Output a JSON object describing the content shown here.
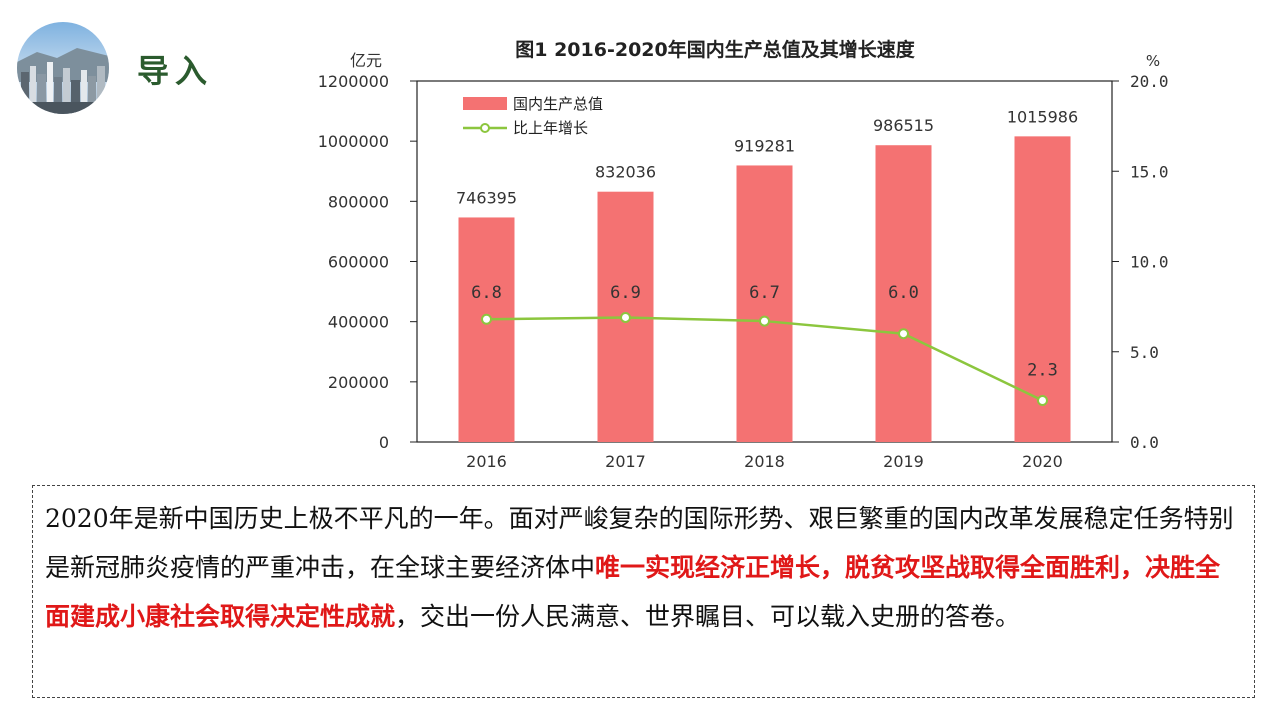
{
  "header": {
    "title": "导入"
  },
  "chart_data": {
    "type": "bar+line",
    "title": "图1    2016-2020年国内生产总值及其增长速度",
    "y_left_unit": "亿元",
    "y_right_unit": "%",
    "categories": [
      "2016",
      "2017",
      "2018",
      "2019",
      "2020"
    ],
    "series": [
      {
        "name": "国内生产总值",
        "kind": "bar",
        "axis": "left",
        "color": "#f47272",
        "values": [
          746395,
          832036,
          919281,
          986515,
          1015986
        ],
        "labels": [
          "746395",
          "832036",
          "919281",
          "986515",
          "1015986"
        ]
      },
      {
        "name": "比上年增长",
        "kind": "line",
        "axis": "right",
        "color": "#8cc63e",
        "values": [
          6.8,
          6.9,
          6.7,
          6.0,
          2.3
        ],
        "labels": [
          "6.8",
          "6.9",
          "6.7",
          "6.0",
          "2.3"
        ]
      }
    ],
    "y_left_ticks": [
      "0",
      "200000",
      "400000",
      "600000",
      "800000",
      "1000000",
      "1200000"
    ],
    "y_left_range": [
      0,
      1200000
    ],
    "y_right_ticks": [
      "0.0",
      "5.0",
      "10.0",
      "15.0",
      "20.0"
    ],
    "y_right_range": [
      0,
      20
    ],
    "legend_position": "top-left",
    "grid": false
  },
  "caption": {
    "part1": "2020年是新中国历史上极不平凡的一年。面对严峻复杂的国际形势、艰巨繁重的国内改革发展稳定任务特别是新冠肺炎疫情的严重冲击，在全球主要经济体中",
    "highlight": "唯一实现经济正增长，脱贫攻坚战取得全面胜利，决胜全面建成小康社会取得决定性成就",
    "part2": "，交出一份人民满意、世界瞩目、可以载入史册的答卷。"
  }
}
